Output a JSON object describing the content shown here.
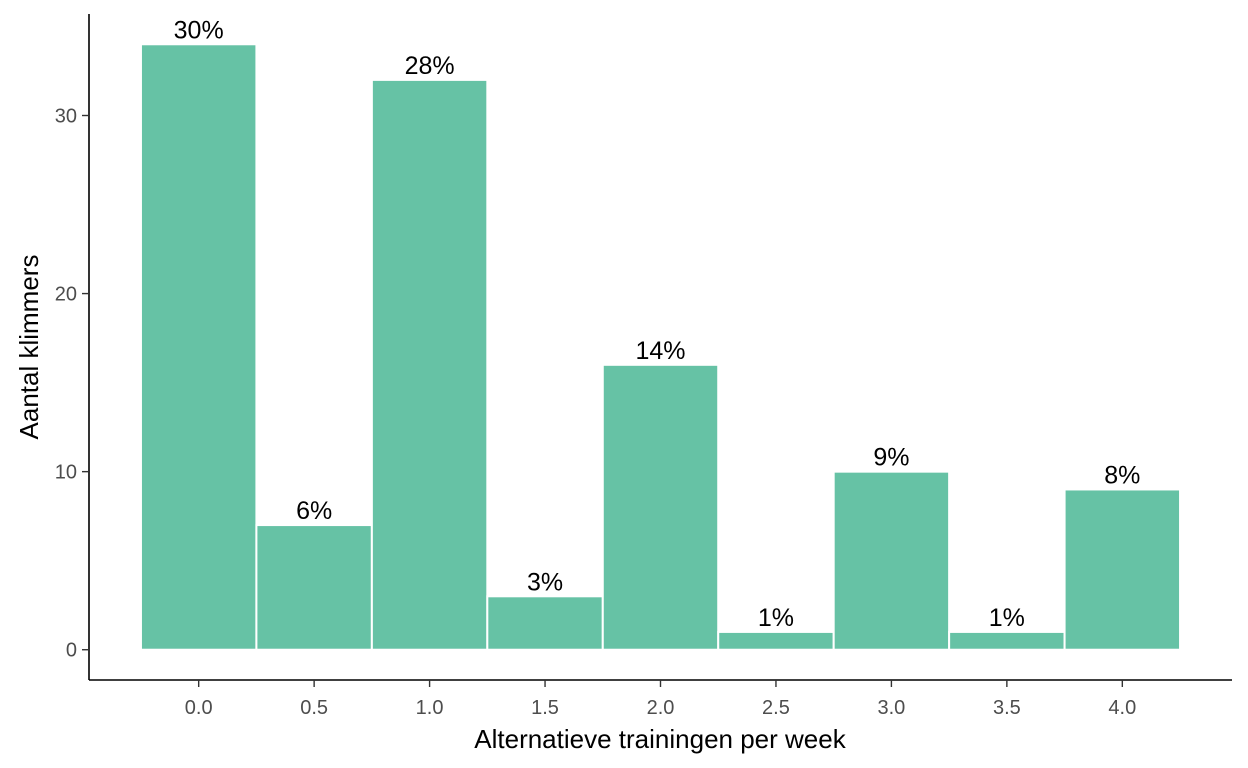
{
  "chart_data": {
    "type": "bar",
    "x": [
      0.0,
      0.5,
      1.0,
      1.5,
      2.0,
      2.5,
      3.0,
      3.5,
      4.0
    ],
    "values": [
      34,
      7,
      32,
      3,
      16,
      1,
      10,
      1,
      9
    ],
    "data_labels": [
      "30%",
      "6%",
      "28%",
      "3%",
      "14%",
      "1%",
      "9%",
      "1%",
      "8%"
    ],
    "bin_width": 0.5,
    "xlabel": "Alternatieve trainingen per week",
    "ylabel": "Aantal klimmers",
    "x_ticks": [
      0.0,
      0.5,
      1.0,
      1.5,
      2.0,
      2.5,
      3.0,
      3.5,
      4.0
    ],
    "x_tick_labels": [
      "0.0",
      "0.5",
      "1.0",
      "1.5",
      "2.0",
      "2.5",
      "3.0",
      "3.5",
      "4.0"
    ],
    "y_ticks": [
      0,
      10,
      20,
      30
    ],
    "y_tick_labels": [
      "0",
      "10",
      "20",
      "30"
    ],
    "xlim": [
      -0.475,
      4.475
    ],
    "ylim": [
      -1.7,
      35.7
    ],
    "grid": false,
    "colors": {
      "bar": "#66c2a5",
      "bar_outline": "#ffffff",
      "axis": "#000000",
      "tick_label": "#4d4d4d"
    }
  }
}
